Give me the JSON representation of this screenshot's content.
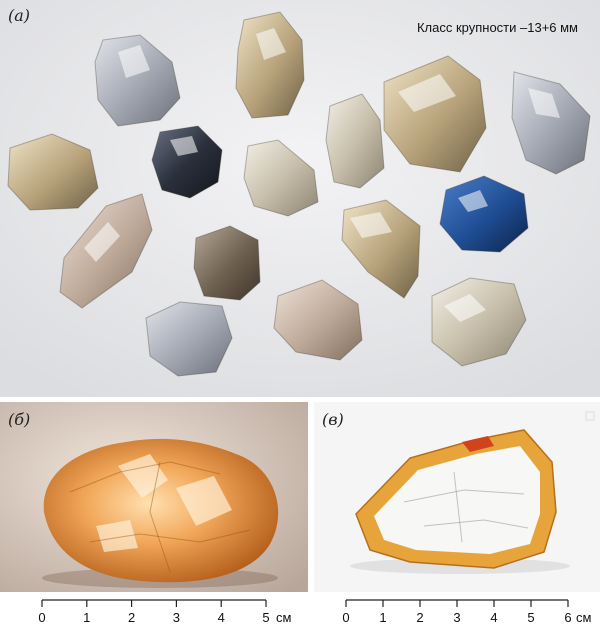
{
  "panels": {
    "a": {
      "letter": "(а)",
      "size_class": "Класс крупности –13+6 мм"
    },
    "b": {
      "letter": "(б)"
    },
    "c": {
      "letter": "(в)"
    }
  },
  "scale_bars": [
    {
      "ticks": [
        "0",
        "1",
        "2",
        "3",
        "4",
        "5"
      ],
      "unit": "см"
    },
    {
      "ticks": [
        "0",
        "1",
        "2",
        "3",
        "4",
        "5",
        "6"
      ],
      "unit": "см"
    }
  ]
}
